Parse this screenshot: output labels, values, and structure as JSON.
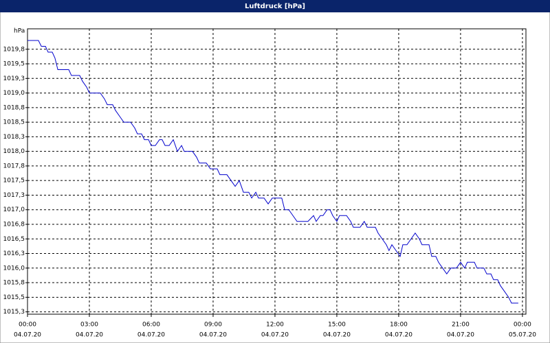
{
  "chart_data": {
    "type": "line",
    "title": "Luftdruck [hPa]",
    "y_unit": "hPa",
    "x": [
      0,
      0.53,
      0.67,
      0.87,
      1,
      1.2,
      1.33,
      1.47,
      2,
      2.13,
      2.53,
      2.67,
      2.87,
      3,
      3.53,
      3.73,
      3.87,
      4.13,
      4.27,
      4.47,
      4.67,
      5,
      5.2,
      5.33,
      5.53,
      5.67,
      5.87,
      6,
      6.2,
      6.4,
      6.53,
      6.67,
      6.87,
      7.07,
      7.27,
      7.47,
      7.6,
      8,
      8.2,
      8.33,
      8.67,
      8.87,
      9.2,
      9.33,
      9.67,
      9.87,
      10.07,
      10.27,
      10.47,
      10.73,
      10.87,
      11.07,
      11.2,
      11.47,
      11.67,
      11.87,
      12.33,
      12.47,
      12.67,
      12.87,
      13.07,
      13.6,
      13.87,
      14,
      14.2,
      14.33,
      14.53,
      14.67,
      14.8,
      15,
      15.13,
      15.47,
      15.67,
      15.8,
      16.13,
      16.33,
      16.47,
      16.87,
      17,
      17.2,
      17.4,
      17.53,
      17.67,
      17.87,
      18.07,
      18.2,
      18.4,
      18.6,
      18.8,
      19,
      19.13,
      19.47,
      19.6,
      19.8,
      19.93,
      20.13,
      20.33,
      20.53,
      20.8,
      21,
      21.2,
      21.33,
      21.67,
      21.8,
      22.13,
      22.27,
      22.47,
      22.6,
      22.8,
      22.93,
      23.13,
      23.33,
      23.47,
      23.8
    ],
    "series": [
      {
        "name": "Luftdruck",
        "color": "#0000cc",
        "values": [
          1019.9,
          1019.9,
          1019.8,
          1019.8,
          1019.7,
          1019.7,
          1019.6,
          1019.4,
          1019.4,
          1019.3,
          1019.3,
          1019.2,
          1019.1,
          1019.0,
          1019.0,
          1018.9,
          1018.8,
          1018.8,
          1018.7,
          1018.6,
          1018.5,
          1018.5,
          1018.4,
          1018.3,
          1018.3,
          1018.2,
          1018.2,
          1018.1,
          1018.1,
          1018.2,
          1018.2,
          1018.1,
          1018.1,
          1018.2,
          1018.0,
          1018.1,
          1018.0,
          1018.0,
          1017.9,
          1017.8,
          1017.8,
          1017.7,
          1017.7,
          1017.6,
          1017.6,
          1017.5,
          1017.4,
          1017.5,
          1017.3,
          1017.3,
          1017.2,
          1017.3,
          1017.2,
          1017.2,
          1017.1,
          1017.2,
          1017.2,
          1017.0,
          1017.0,
          1016.9,
          1016.8,
          1016.8,
          1016.9,
          1016.8,
          1016.9,
          1016.9,
          1017.0,
          1017.0,
          1016.9,
          1016.8,
          1016.9,
          1016.9,
          1016.8,
          1016.7,
          1016.7,
          1016.8,
          1016.7,
          1016.7,
          1016.6,
          1016.5,
          1016.4,
          1016.3,
          1016.4,
          1016.3,
          1016.2,
          1016.4,
          1016.4,
          1016.5,
          1016.6,
          1016.5,
          1016.4,
          1016.4,
          1016.2,
          1016.2,
          1016.1,
          1016.0,
          1015.9,
          1016.0,
          1016.0,
          1016.1,
          1016.0,
          1016.1,
          1016.1,
          1016.0,
          1016.0,
          1015.9,
          1015.9,
          1015.8,
          1015.8,
          1015.7,
          1015.6,
          1015.5,
          1015.4,
          1015.4
        ]
      }
    ],
    "xlim": [
      0,
      24.17
    ],
    "xticks": [
      {
        "value": 0,
        "label": "00:00",
        "date": "04.07.20"
      },
      {
        "value": 3,
        "label": "03:00",
        "date": "04.07.20"
      },
      {
        "value": 6,
        "label": "06:00",
        "date": "04.07.20"
      },
      {
        "value": 9,
        "label": "09:00",
        "date": "04.07.20"
      },
      {
        "value": 12,
        "label": "12:00",
        "date": "04.07.20"
      },
      {
        "value": 15,
        "label": "15:00",
        "date": "04.07.20"
      },
      {
        "value": 18,
        "label": "18:00",
        "date": "04.07.20"
      },
      {
        "value": 21,
        "label": "21:00",
        "date": "04.07.20"
      },
      {
        "value": 24,
        "label": "00:00",
        "date": "05.07.20"
      }
    ],
    "ylim": [
      1015.21,
      1020.1
    ],
    "yticks": [
      {
        "value": 1015.25,
        "label": "1015,3"
      },
      {
        "value": 1015.5,
        "label": "1015,5"
      },
      {
        "value": 1015.75,
        "label": "1015,8"
      },
      {
        "value": 1016,
        "label": "1016,0"
      },
      {
        "value": 1016.25,
        "label": "1016,3"
      },
      {
        "value": 1016.5,
        "label": "1016,5"
      },
      {
        "value": 1016.75,
        "label": "1016,8"
      },
      {
        "value": 1017,
        "label": "1017,0"
      },
      {
        "value": 1017.25,
        "label": "1017,3"
      },
      {
        "value": 1017.5,
        "label": "1017,5"
      },
      {
        "value": 1017.75,
        "label": "1017,8"
      },
      {
        "value": 1018,
        "label": "1018,0"
      },
      {
        "value": 1018.25,
        "label": "1018,3"
      },
      {
        "value": 1018.5,
        "label": "1018,5"
      },
      {
        "value": 1018.75,
        "label": "1018,8"
      },
      {
        "value": 1019,
        "label": "1019,0"
      },
      {
        "value": 1019.25,
        "label": "1019,3"
      },
      {
        "value": 1019.5,
        "label": "1019,5"
      },
      {
        "value": 1019.75,
        "label": "1019,8"
      }
    ],
    "grid": true
  }
}
